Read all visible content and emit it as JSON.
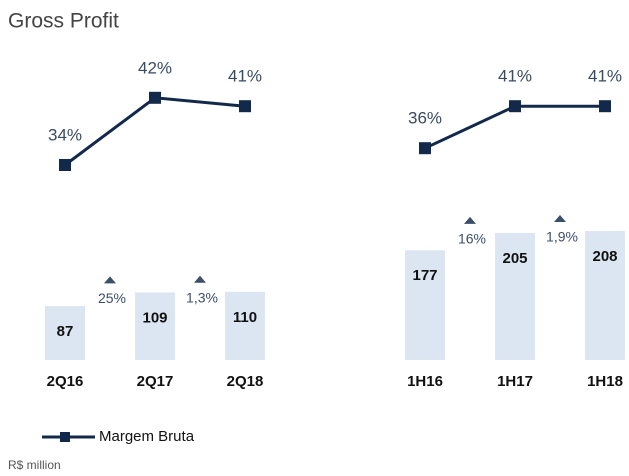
{
  "title": "Gross Profit",
  "legend": "Margem Bruta",
  "footnote": "R$ million",
  "chart_data": [
    {
      "type": "combo",
      "categories": [
        "2Q16",
        "2Q17",
        "2Q18"
      ],
      "bars": {
        "color": "#dce6f2",
        "values": [
          87,
          109,
          110
        ]
      },
      "line": {
        "color": "#13294b",
        "values": [
          34,
          42,
          41
        ],
        "value_labels": [
          "34%",
          "42%",
          "41%"
        ]
      },
      "growth": [
        {
          "value": 25,
          "label": "25%"
        },
        {
          "value": 1.3,
          "label": "1,3%"
        }
      ]
    },
    {
      "type": "combo",
      "categories": [
        "1H16",
        "1H17",
        "1H18"
      ],
      "bars": {
        "color": "#dce6f2",
        "values": [
          177,
          205,
          208
        ]
      },
      "line": {
        "color": "#13294b",
        "values": [
          36,
          41,
          41
        ],
        "value_labels": [
          "36%",
          "41%",
          "41%"
        ]
      },
      "growth": [
        {
          "value": 16,
          "label": "16%"
        },
        {
          "value": 1.9,
          "label": "1,9%"
        }
      ]
    }
  ]
}
